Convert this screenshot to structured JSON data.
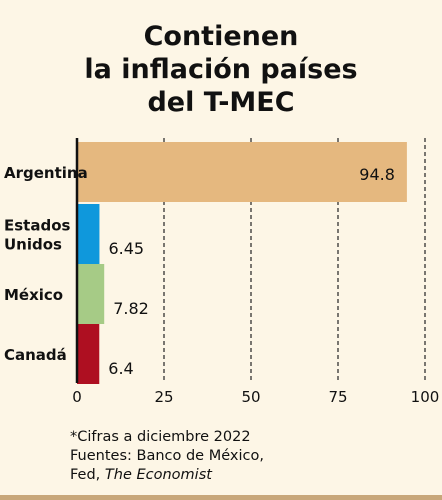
{
  "title_lines": [
    "Contienen",
    "la inflación países",
    "del T-MEC"
  ],
  "chart_data": {
    "type": "bar",
    "orientation": "horizontal",
    "categories": [
      "Argentina",
      "Estados Unidos",
      "México",
      "Canadá"
    ],
    "category_label_lines": [
      [
        "Argentina"
      ],
      [
        "Estados",
        "Unidos"
      ],
      [
        "México"
      ],
      [
        "Canadá"
      ]
    ],
    "values": [
      94.8,
      6.45,
      7.82,
      6.4
    ],
    "value_labels": [
      "94.8",
      "6.45",
      "7.82",
      "6.4"
    ],
    "colors": [
      "#e5b87f",
      "#0f98dc",
      "#a6cb86",
      "#ae0f21"
    ],
    "xlim": [
      0,
      100
    ],
    "xticks": [
      0,
      25,
      50,
      75,
      100
    ],
    "xtick_labels": [
      "0",
      "25",
      "50",
      "75",
      "100"
    ],
    "grid": "vertical dashed",
    "title": "Contienen la inflación países del T-MEC"
  },
  "footnote": {
    "line1": "*Cifras a diciembre 2022",
    "line2": "Fuentes: Banco de México,",
    "line3_prefix": "Fed, ",
    "line3_italic": "The Economist"
  }
}
